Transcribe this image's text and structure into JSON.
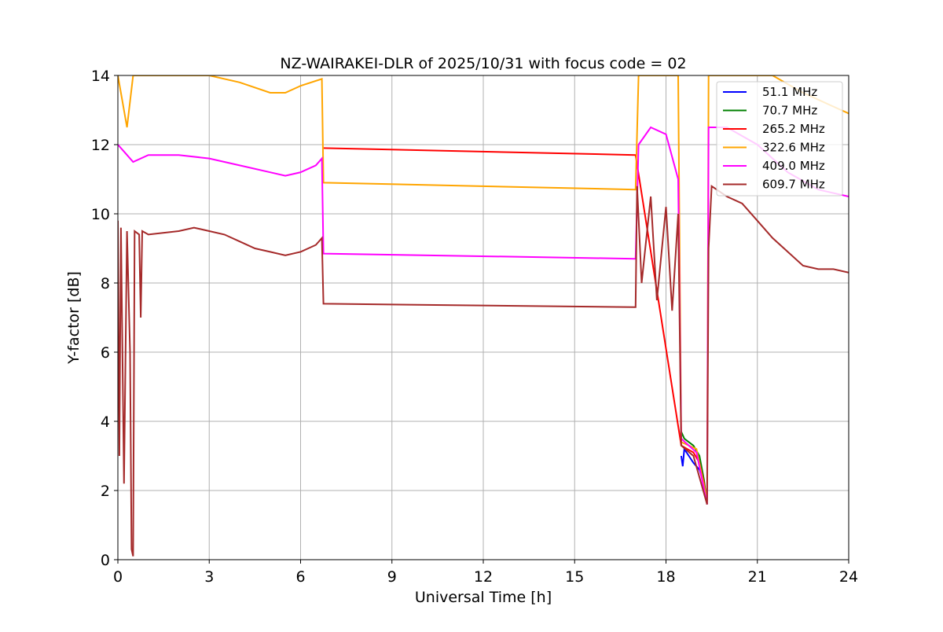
{
  "chart_data": {
    "type": "line",
    "title": "NZ-WAIRAKEI-DLR of 2025/10/31 with focus code = 02",
    "xlabel": "Universal Time [h]",
    "ylabel": "Y-factor [dB]",
    "xlim": [
      0,
      24
    ],
    "ylim": [
      0,
      14
    ],
    "xticks": [
      0,
      3,
      6,
      9,
      12,
      15,
      18,
      21,
      24
    ],
    "yticks": [
      0,
      2,
      4,
      6,
      8,
      10,
      12,
      14
    ],
    "grid": true,
    "legend_position": "top-right",
    "series": [
      {
        "name": "51.1 MHz",
        "legend_label": "  51.1 MHz",
        "color": "#0000ff",
        "points": [
          [
            18.5,
            3.0
          ],
          [
            18.55,
            2.7
          ],
          [
            18.6,
            3.2
          ],
          [
            18.75,
            3.0
          ],
          [
            18.9,
            2.8
          ],
          [
            19.1,
            2.6
          ],
          [
            19.25,
            2.2
          ],
          [
            19.35,
            1.6
          ]
        ]
      },
      {
        "name": "70.7 MHz",
        "legend_label": "  70.7 MHz",
        "color": "#008000",
        "points": [
          [
            18.5,
            3.7
          ],
          [
            18.6,
            3.5
          ],
          [
            18.75,
            3.4
          ],
          [
            18.9,
            3.3
          ],
          [
            19.1,
            3.0
          ],
          [
            19.25,
            2.3
          ],
          [
            19.35,
            1.6
          ]
        ]
      },
      {
        "name": "265.2 MHz",
        "legend_label": "265.2 MHz",
        "color": "#ff0000",
        "points": [
          [
            6.75,
            11.9
          ],
          [
            17.0,
            11.7
          ],
          [
            18.5,
            3.3
          ],
          [
            18.7,
            3.2
          ],
          [
            18.9,
            3.1
          ],
          [
            19.1,
            2.8
          ],
          [
            19.25,
            2.2
          ],
          [
            19.35,
            1.6
          ]
        ]
      },
      {
        "name": "322.6 MHz",
        "legend_label": "322.6 MHz",
        "color": "#ffa500",
        "points": [
          [
            0,
            14.0
          ],
          [
            0.3,
            12.5
          ],
          [
            0.5,
            14.0
          ],
          [
            0.9,
            14.0
          ],
          [
            2.0,
            14.0
          ],
          [
            3.0,
            14.0
          ],
          [
            4.0,
            13.8
          ],
          [
            5.0,
            13.5
          ],
          [
            5.5,
            13.5
          ],
          [
            6.0,
            13.7
          ],
          [
            6.7,
            13.9
          ],
          [
            6.75,
            10.9
          ],
          [
            17.0,
            10.7
          ],
          [
            17.1,
            14.0
          ],
          [
            18.4,
            14.0
          ],
          [
            18.5,
            3.4
          ],
          [
            19.0,
            3.2
          ],
          [
            19.35,
            1.7
          ],
          [
            19.4,
            14.0
          ],
          [
            20.5,
            14.0
          ],
          [
            21.5,
            14.0
          ],
          [
            22.5,
            13.5
          ],
          [
            23.5,
            13.1
          ],
          [
            24.0,
            12.9
          ]
        ]
      },
      {
        "name": "409.0 MHz",
        "legend_label": "409.0 MHz",
        "color": "#ff00ff",
        "points": [
          [
            0,
            12.0
          ],
          [
            0.2,
            11.8
          ],
          [
            0.5,
            11.5
          ],
          [
            1.0,
            11.7
          ],
          [
            2.0,
            11.7
          ],
          [
            3.0,
            11.6
          ],
          [
            4.0,
            11.4
          ],
          [
            5.0,
            11.2
          ],
          [
            5.5,
            11.1
          ],
          [
            6.0,
            11.2
          ],
          [
            6.5,
            11.4
          ],
          [
            6.7,
            11.6
          ],
          [
            6.75,
            8.85
          ],
          [
            17.0,
            8.7
          ],
          [
            17.1,
            12.0
          ],
          [
            17.5,
            12.5
          ],
          [
            18.0,
            12.3
          ],
          [
            18.4,
            11.0
          ],
          [
            18.5,
            3.5
          ],
          [
            19.0,
            3.1
          ],
          [
            19.35,
            1.6
          ],
          [
            19.4,
            12.5
          ],
          [
            20.0,
            12.5
          ],
          [
            21.0,
            12.0
          ],
          [
            22.0,
            11.2
          ],
          [
            23.0,
            10.7
          ],
          [
            24.0,
            10.5
          ]
        ]
      },
      {
        "name": "609.7 MHz",
        "legend_label": "609.7 MHz",
        "color": "#a52a2a",
        "points": [
          [
            0,
            9.8
          ],
          [
            0.05,
            3.0
          ],
          [
            0.1,
            9.6
          ],
          [
            0.2,
            2.2
          ],
          [
            0.3,
            9.5
          ],
          [
            0.4,
            6.0
          ],
          [
            0.45,
            0.3
          ],
          [
            0.5,
            0.1
          ],
          [
            0.55,
            9.5
          ],
          [
            0.7,
            9.4
          ],
          [
            0.75,
            7.0
          ],
          [
            0.8,
            9.5
          ],
          [
            1.0,
            9.4
          ],
          [
            2.0,
            9.5
          ],
          [
            2.5,
            9.6
          ],
          [
            3.0,
            9.5
          ],
          [
            3.5,
            9.4
          ],
          [
            4.0,
            9.2
          ],
          [
            4.5,
            9.0
          ],
          [
            5.0,
            8.9
          ],
          [
            5.5,
            8.8
          ],
          [
            6.0,
            8.9
          ],
          [
            6.5,
            9.1
          ],
          [
            6.7,
            9.3
          ],
          [
            6.75,
            7.4
          ],
          [
            17.0,
            7.3
          ],
          [
            17.05,
            10.8
          ],
          [
            17.2,
            8.0
          ],
          [
            17.5,
            10.5
          ],
          [
            17.7,
            7.5
          ],
          [
            18.0,
            10.2
          ],
          [
            18.2,
            7.2
          ],
          [
            18.4,
            10.0
          ],
          [
            18.5,
            3.3
          ],
          [
            18.9,
            3.0
          ],
          [
            19.35,
            1.6
          ],
          [
            19.4,
            9.0
          ],
          [
            19.5,
            10.8
          ],
          [
            20.0,
            10.5
          ],
          [
            20.5,
            10.3
          ],
          [
            21.0,
            9.8
          ],
          [
            21.5,
            9.3
          ],
          [
            22.0,
            8.9
          ],
          [
            22.5,
            8.5
          ],
          [
            23.0,
            8.4
          ],
          [
            23.5,
            8.4
          ],
          [
            24.0,
            8.3
          ]
        ]
      }
    ]
  }
}
